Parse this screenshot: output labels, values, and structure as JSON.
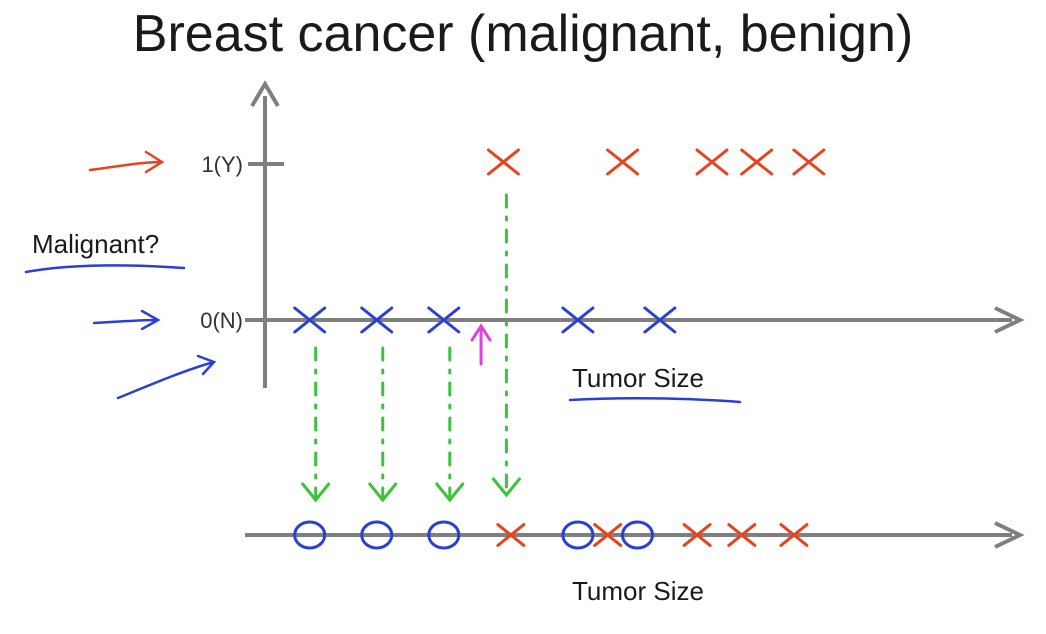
{
  "chart_data": [
    {
      "type": "scatter",
      "title": "Breast cancer (malignant, benign)",
      "ylabel": "Malignant?",
      "xlabel": "Tumor Size",
      "yticks": [
        "1(Y)",
        "0(N)"
      ],
      "y_values": [
        1,
        0
      ],
      "series": [
        {
          "name": "",
          "marker": "x",
          "color": "#e8431c",
          "y": 1,
          "x": [
            0.32,
            0.48,
            0.6,
            0.66,
            0.73
          ]
        },
        {
          "name": "",
          "marker": "x",
          "color": "#2a3fd6",
          "y": 0,
          "x": [
            0.06,
            0.15,
            0.24,
            0.42,
            0.53
          ]
        }
      ],
      "threshold_arrow_x": 0.29,
      "threshold_arrow_color": "#e040e0",
      "projection_arrow_color": "#3cc23c"
    },
    {
      "type": "scatter",
      "xlabel": "Tumor Size",
      "series": [
        {
          "name": "",
          "marker": "o",
          "color": "#2a3fd6",
          "x": [
            0.06,
            0.15,
            0.24,
            0.42,
            0.5
          ]
        },
        {
          "name": "",
          "marker": "x",
          "color": "#e8431c",
          "x": [
            0.33,
            0.46,
            0.58,
            0.64,
            0.71
          ]
        }
      ]
    }
  ],
  "colors": {
    "axis": "#7f7f7f",
    "red": "#e8431c",
    "blue": "#2a3fd6",
    "green": "#3cc23c",
    "magenta": "#e040e0",
    "text": "#1a1a1a"
  }
}
